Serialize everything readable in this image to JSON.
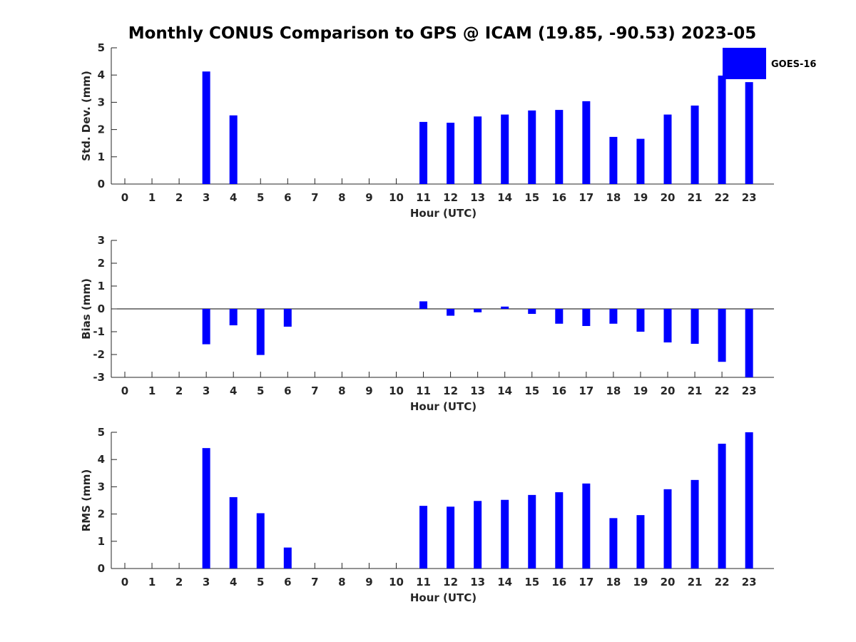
{
  "chart_data": [
    {
      "type": "bar",
      "title": "Monthly CONUS Comparison to GPS @ ICAM (19.85, -90.53) 2023-05",
      "xlabel": "Hour (UTC)",
      "ylabel": "Std. Dev. (mm)",
      "ylim": [
        0,
        5
      ],
      "yticks": [
        "0",
        "1",
        "2",
        "3",
        "4",
        "5"
      ],
      "categories": [
        "0",
        "1",
        "2",
        "3",
        "4",
        "5",
        "6",
        "7",
        "8",
        "9",
        "10",
        "11",
        "12",
        "13",
        "14",
        "15",
        "16",
        "17",
        "18",
        "19",
        "20",
        "21",
        "22",
        "23"
      ],
      "series": [
        {
          "name": "GOES-16",
          "color": "#0000ff",
          "values": [
            null,
            null,
            null,
            4.13,
            2.52,
            null,
            null,
            null,
            null,
            null,
            null,
            2.28,
            2.25,
            2.48,
            2.55,
            2.7,
            2.72,
            3.04,
            1.73,
            1.66,
            2.55,
            2.88,
            3.98,
            3.74
          ]
        }
      ],
      "legend": {
        "position": "top-right",
        "entries": [
          "GOES-16"
        ]
      },
      "grid": false
    },
    {
      "type": "bar",
      "title": "",
      "xlabel": "Hour (UTC)",
      "ylabel": "Bias (mm)",
      "ylim": [
        -3,
        3
      ],
      "yticks": [
        "-3",
        "-2",
        "-1",
        "0",
        "1",
        "2",
        "3"
      ],
      "categories": [
        "0",
        "1",
        "2",
        "3",
        "4",
        "5",
        "6",
        "7",
        "8",
        "9",
        "10",
        "11",
        "12",
        "13",
        "14",
        "15",
        "16",
        "17",
        "18",
        "19",
        "20",
        "21",
        "22",
        "23"
      ],
      "series": [
        {
          "name": "GOES-16",
          "color": "#0000ff",
          "values": [
            null,
            null,
            null,
            -1.55,
            -0.72,
            -2.02,
            -0.78,
            null,
            null,
            null,
            null,
            0.33,
            -0.3,
            -0.15,
            0.1,
            -0.22,
            -0.65,
            -0.75,
            -0.65,
            -1.0,
            -1.47,
            -1.53,
            -2.32,
            -3.0
          ]
        }
      ],
      "zero_line": true,
      "grid": false
    },
    {
      "type": "bar",
      "title": "",
      "xlabel": "Hour (UTC)",
      "ylabel": "RMS (mm)",
      "ylim": [
        0,
        5
      ],
      "yticks": [
        "0",
        "1",
        "2",
        "3",
        "4",
        "5"
      ],
      "categories": [
        "0",
        "1",
        "2",
        "3",
        "4",
        "5",
        "6",
        "7",
        "8",
        "9",
        "10",
        "11",
        "12",
        "13",
        "14",
        "15",
        "16",
        "17",
        "18",
        "19",
        "20",
        "21",
        "22",
        "23"
      ],
      "series": [
        {
          "name": "GOES-16",
          "color": "#0000ff",
          "values": [
            null,
            null,
            null,
            4.42,
            2.62,
            2.03,
            0.77,
            null,
            null,
            null,
            null,
            2.3,
            2.27,
            2.48,
            2.52,
            2.7,
            2.8,
            3.12,
            1.85,
            1.96,
            2.91,
            3.25,
            4.58,
            5.0
          ]
        }
      ],
      "grid": false
    }
  ]
}
